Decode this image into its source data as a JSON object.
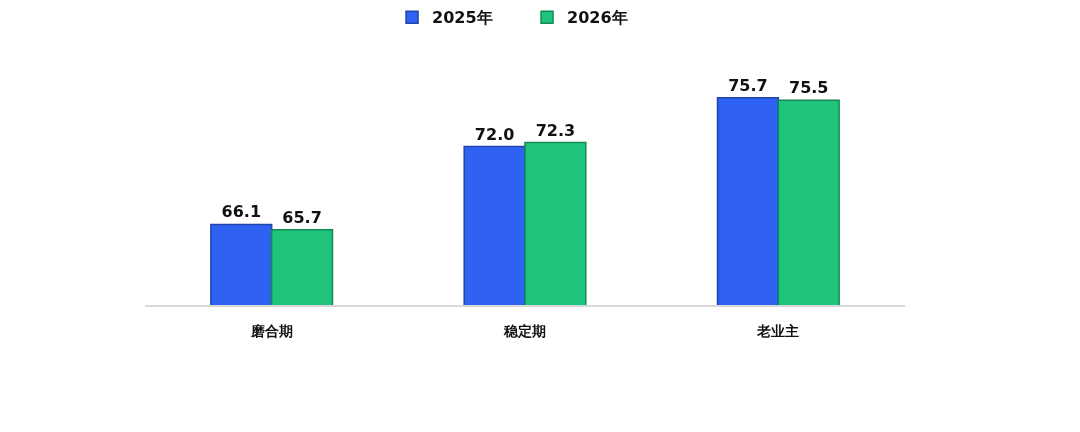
{
  "chart_data": {
    "type": "bar",
    "categories": [
      "磨合期",
      "稳定期",
      "老业主"
    ],
    "series": [
      {
        "name": "2025年",
        "color": "#2f62f2",
        "values": [
          66.1,
          72.0,
          75.7
        ],
        "value_labels": [
          "66.1",
          "72.0",
          "75.7"
        ]
      },
      {
        "name": "2026年",
        "color": "#1fc47c",
        "values": [
          65.7,
          72.3,
          75.5
        ],
        "value_labels": [
          "65.7",
          "72.3",
          "75.5"
        ]
      }
    ],
    "legend": "top",
    "tick_labels": "x"
  }
}
